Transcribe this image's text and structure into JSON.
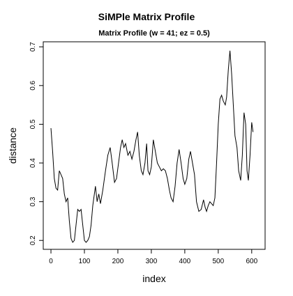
{
  "chart_data": {
    "type": "line",
    "title": "SiMPle Matrix Profile",
    "subtitle": "Matrix Profile (w = 41; ez = 0.5)",
    "x_label": "index",
    "y_label": "distance",
    "color": "#000000",
    "xlim": [
      -23,
      640
    ],
    "ylim": [
      0.177,
      0.713
    ],
    "xticks": [
      0,
      100,
      200,
      300,
      400,
      500,
      600
    ],
    "yticks": [
      0.2,
      0.3,
      0.4,
      0.5,
      0.6,
      0.7
    ],
    "x": [
      0,
      5,
      10,
      15,
      20,
      25,
      30,
      35,
      40,
      45,
      50,
      55,
      60,
      65,
      70,
      75,
      80,
      85,
      90,
      95,
      100,
      105,
      110,
      115,
      120,
      125,
      133,
      138,
      143,
      148,
      155,
      163,
      170,
      177,
      183,
      190,
      196,
      202,
      208,
      213,
      218,
      223,
      230,
      236,
      242,
      248,
      254,
      259,
      264,
      270,
      275,
      281,
      286,
      290,
      295,
      300,
      306,
      312,
      318,
      324,
      330,
      336,
      342,
      348,
      354,
      359,
      365,
      371,
      377,
      383,
      389,
      395,
      400,
      406,
      412,
      417,
      423,
      429,
      435,
      442,
      449,
      456,
      461,
      465,
      470,
      475,
      480,
      485,
      490,
      495,
      500,
      505,
      510,
      515,
      521,
      525,
      530,
      535,
      540,
      545,
      550,
      556,
      561,
      567,
      572,
      577,
      582,
      586,
      590,
      595,
      600,
      604
    ],
    "values": [
      0.49,
      0.43,
      0.36,
      0.335,
      0.33,
      0.38,
      0.37,
      0.36,
      0.32,
      0.3,
      0.31,
      0.25,
      0.205,
      0.195,
      0.2,
      0.24,
      0.28,
      0.275,
      0.28,
      0.24,
      0.2,
      0.195,
      0.2,
      0.21,
      0.24,
      0.29,
      0.34,
      0.3,
      0.32,
      0.295,
      0.33,
      0.38,
      0.42,
      0.44,
      0.4,
      0.35,
      0.36,
      0.4,
      0.44,
      0.46,
      0.44,
      0.45,
      0.42,
      0.43,
      0.41,
      0.43,
      0.46,
      0.48,
      0.42,
      0.38,
      0.37,
      0.4,
      0.45,
      0.38,
      0.37,
      0.39,
      0.46,
      0.43,
      0.4,
      0.39,
      0.38,
      0.385,
      0.38,
      0.36,
      0.33,
      0.31,
      0.3,
      0.34,
      0.4,
      0.435,
      0.4,
      0.36,
      0.345,
      0.36,
      0.41,
      0.43,
      0.4,
      0.37,
      0.3,
      0.275,
      0.28,
      0.305,
      0.285,
      0.275,
      0.29,
      0.3,
      0.295,
      0.29,
      0.31,
      0.4,
      0.5,
      0.565,
      0.575,
      0.56,
      0.55,
      0.57,
      0.64,
      0.69,
      0.63,
      0.55,
      0.47,
      0.44,
      0.38,
      0.355,
      0.42,
      0.53,
      0.5,
      0.38,
      0.355,
      0.42,
      0.505,
      0.48
    ]
  }
}
